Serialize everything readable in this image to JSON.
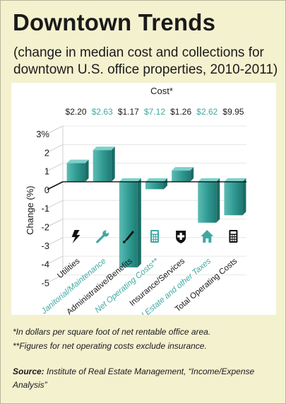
{
  "title": "Downtown Trends",
  "subtitle": "(change in median cost and collections for downtown U.S. office properties, 2010-2011)",
  "chart_data": {
    "type": "bar",
    "cost_header": "Cost*",
    "ylabel": "Change (%)",
    "ylim": [
      -5,
      3
    ],
    "yticks": [
      "3%",
      "2",
      "1",
      "0",
      "-1",
      "-2",
      "-3",
      "-4",
      "-5"
    ],
    "categories": [
      "Utilities",
      "Janitorial/Maintenance",
      "Administrative/Benefits",
      "Net Operating Costs**",
      "Insurance/Services",
      "Real Estate and other Taxes",
      "Total Operating Costs"
    ],
    "costs": [
      "$2.20",
      "$2.63",
      "$1.17",
      "$7.12",
      "$1.26",
      "$2.62",
      "$9.95"
    ],
    "values": [
      1.0,
      1.7,
      -4.6,
      -0.4,
      0.6,
      -2.2,
      -1.8
    ],
    "highlighted": [
      false,
      true,
      false,
      true,
      false,
      true,
      false
    ],
    "icons": [
      "lightning-icon",
      "wrench-icon",
      "pen-icon",
      "calculator-icon",
      "medical-cross-icon",
      "house-icon",
      "calculator-icon"
    ],
    "grid": true,
    "colors": {
      "bar": "#3aa49c",
      "highlight_text": "#3fa8a2",
      "text": "#1a1a1a",
      "grid": "#cfcfcf"
    }
  },
  "footnotes": {
    "cost_note": "*In dollars per square foot of net rentable office area.",
    "net_note": "**Figures for net operating costs exclude insurance."
  },
  "source": {
    "label": "Source:",
    "text": "Institute of Real Estate Management, “Income/Expense Analysis”"
  }
}
